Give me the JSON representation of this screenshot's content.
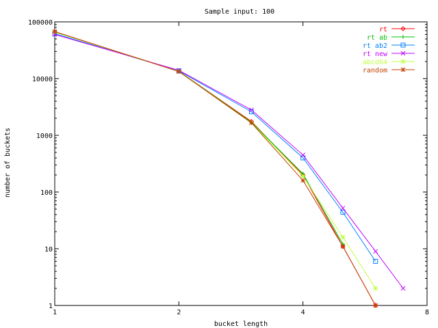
{
  "chart_data": {
    "type": "line",
    "title": "Sample input: 100",
    "xlabel": "bucket length",
    "ylabel": "number of buckets",
    "x_scale": "log2",
    "y_scale": "log10",
    "xlim": [
      1,
      8
    ],
    "ylim": [
      1,
      100000
    ],
    "x_ticks": [
      {
        "value": 1,
        "label": "1"
      },
      {
        "value": 2,
        "label": "2"
      },
      {
        "value": 4,
        "label": "4"
      },
      {
        "value": 8,
        "label": "8"
      }
    ],
    "y_ticks": [
      {
        "value": 1,
        "label": "1"
      },
      {
        "value": 10,
        "label": "10"
      },
      {
        "value": 100,
        "label": "100"
      },
      {
        "value": 1000,
        "label": "1000"
      },
      {
        "value": 10000,
        "label": "10000"
      },
      {
        "value": 100000,
        "label": "100000"
      }
    ],
    "grid": false,
    "legend_position": "top-right",
    "series": [
      {
        "name": "rt",
        "color": "#ff0000",
        "marker": "diamond",
        "points": [
          [
            1,
            67000
          ],
          [
            2,
            13500
          ],
          [
            3,
            1750
          ],
          [
            4,
            200
          ],
          [
            5,
            11
          ],
          [
            6,
            1
          ]
        ]
      },
      {
        "name": "rt ab",
        "color": "#00c000",
        "marker": "plus",
        "points": [
          [
            1,
            66000
          ],
          [
            2,
            13500
          ],
          [
            3,
            1700
          ],
          [
            4,
            210
          ],
          [
            5,
            12
          ]
        ]
      },
      {
        "name": "rt ab2",
        "color": "#0080ff",
        "marker": "square",
        "points": [
          [
            1,
            62000
          ],
          [
            2,
            13700
          ],
          [
            3,
            2600
          ],
          [
            4,
            400
          ],
          [
            5,
            44
          ],
          [
            6,
            6
          ]
        ]
      },
      {
        "name": "rt new",
        "color": "#c000ff",
        "marker": "x",
        "points": [
          [
            1,
            60000
          ],
          [
            2,
            14000
          ],
          [
            3,
            2800
          ],
          [
            4,
            450
          ],
          [
            5,
            52
          ],
          [
            6,
            9
          ],
          [
            7,
            2
          ]
        ]
      },
      {
        "name": "abcd64",
        "color": "#c0ff40",
        "marker": "star",
        "points": [
          [
            1,
            66500
          ],
          [
            2,
            13400
          ],
          [
            3,
            1650
          ],
          [
            4,
            190
          ],
          [
            5,
            16
          ],
          [
            6,
            2
          ]
        ]
      },
      {
        "name": "random",
        "color": "#c04000",
        "marker": "star",
        "points": [
          [
            1,
            67500
          ],
          [
            2,
            13300
          ],
          [
            3,
            1650
          ],
          [
            4,
            160
          ],
          [
            5,
            11
          ],
          [
            6,
            1
          ]
        ]
      }
    ]
  }
}
